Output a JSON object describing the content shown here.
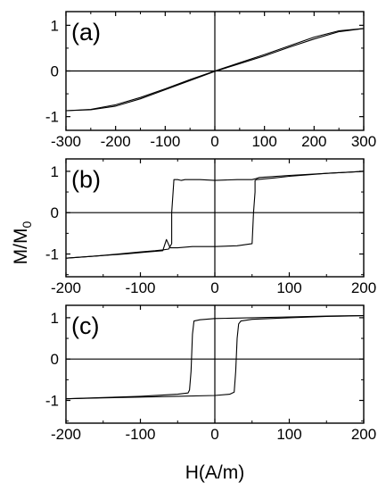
{
  "figure": {
    "ylabel": "M/M",
    "ylabel_sub": "0",
    "xlabel": "H(A/m)"
  },
  "chart_data": [
    {
      "type": "line",
      "panel": "(a)",
      "xlim": [
        -300,
        300
      ],
      "ylim": [
        -1.3,
        1.3
      ],
      "x_ticks": [
        -300,
        -200,
        -100,
        0,
        100,
        200,
        300
      ],
      "y_ticks": [
        -1,
        0,
        1
      ],
      "grid": false,
      "series": [
        {
          "branch": "descending",
          "x": [
            300,
            250,
            200,
            150,
            100,
            50,
            0,
            -50,
            -100,
            -150,
            -200,
            -250,
            -300
          ],
          "y": [
            0.93,
            0.88,
            0.74,
            0.55,
            0.36,
            0.18,
            0.0,
            -0.19,
            -0.39,
            -0.58,
            -0.74,
            -0.84,
            -0.87
          ]
        },
        {
          "branch": "ascending",
          "x": [
            -300,
            -250,
            -200,
            -150,
            -100,
            -50,
            0,
            50,
            100,
            150,
            200,
            250,
            300
          ],
          "y": [
            -0.87,
            -0.85,
            -0.77,
            -0.61,
            -0.41,
            -0.21,
            -0.01,
            0.16,
            0.33,
            0.52,
            0.7,
            0.86,
            0.93
          ]
        }
      ]
    },
    {
      "type": "line",
      "panel": "(b)",
      "xlim": [
        -200,
        200
      ],
      "ylim": [
        -1.55,
        1.3
      ],
      "x_ticks": [
        -200,
        -100,
        0,
        100,
        200
      ],
      "y_ticks": [
        -1,
        0,
        1
      ],
      "grid": false,
      "series": [
        {
          "branch": "descending",
          "x": [
            200,
            150,
            100,
            60,
            55,
            50,
            30,
            0,
            -20,
            -40,
            -45,
            -50,
            -55,
            -58,
            -58,
            -62,
            -70,
            -80,
            -100,
            -130,
            -160,
            -200
          ],
          "y": [
            1.0,
            0.95,
            0.9,
            0.85,
            0.82,
            0.8,
            0.8,
            0.78,
            0.8,
            0.8,
            0.78,
            0.8,
            0.8,
            0.0,
            -0.75,
            -0.88,
            -0.9,
            -0.92,
            -0.95,
            -1.0,
            -1.05,
            -1.1
          ]
        },
        {
          "branch": "ascending",
          "x": [
            -200,
            -160,
            -120,
            -90,
            -70,
            -65,
            -60,
            -50,
            -30,
            0,
            30,
            50,
            52,
            54,
            54,
            56,
            80,
            100,
            150,
            200
          ],
          "y": [
            -1.1,
            -1.05,
            -1.0,
            -0.95,
            -0.92,
            -0.65,
            -0.85,
            -0.85,
            -0.82,
            -0.82,
            -0.8,
            -0.75,
            0.0,
            0.5,
            0.78,
            0.8,
            0.84,
            0.88,
            0.95,
            1.0
          ]
        }
      ]
    },
    {
      "type": "line",
      "panel": "(c)",
      "xlim": [
        -200,
        200
      ],
      "ylim": [
        -1.55,
        1.3
      ],
      "x_ticks": [
        -200,
        -100,
        0,
        100,
        200
      ],
      "y_ticks": [
        -1,
        0,
        1
      ],
      "grid": false,
      "series": [
        {
          "branch": "descending",
          "x": [
            200,
            150,
            100,
            50,
            0,
            -20,
            -28,
            -30,
            -32,
            -34,
            -36,
            -50,
            -100,
            -150,
            -200
          ],
          "y": [
            1.05,
            1.04,
            1.02,
            1.0,
            0.98,
            0.95,
            0.92,
            0.6,
            -0.3,
            -0.75,
            -0.82,
            -0.85,
            -0.9,
            -0.93,
            -0.96
          ]
        },
        {
          "branch": "ascending",
          "x": [
            -200,
            -150,
            -100,
            -50,
            0,
            20,
            26,
            28,
            30,
            32,
            35,
            50,
            100,
            150,
            200
          ],
          "y": [
            -0.96,
            -0.94,
            -0.92,
            -0.9,
            -0.88,
            -0.85,
            -0.8,
            -0.3,
            0.5,
            0.85,
            0.92,
            0.96,
            1.0,
            1.03,
            1.05
          ]
        }
      ]
    }
  ]
}
